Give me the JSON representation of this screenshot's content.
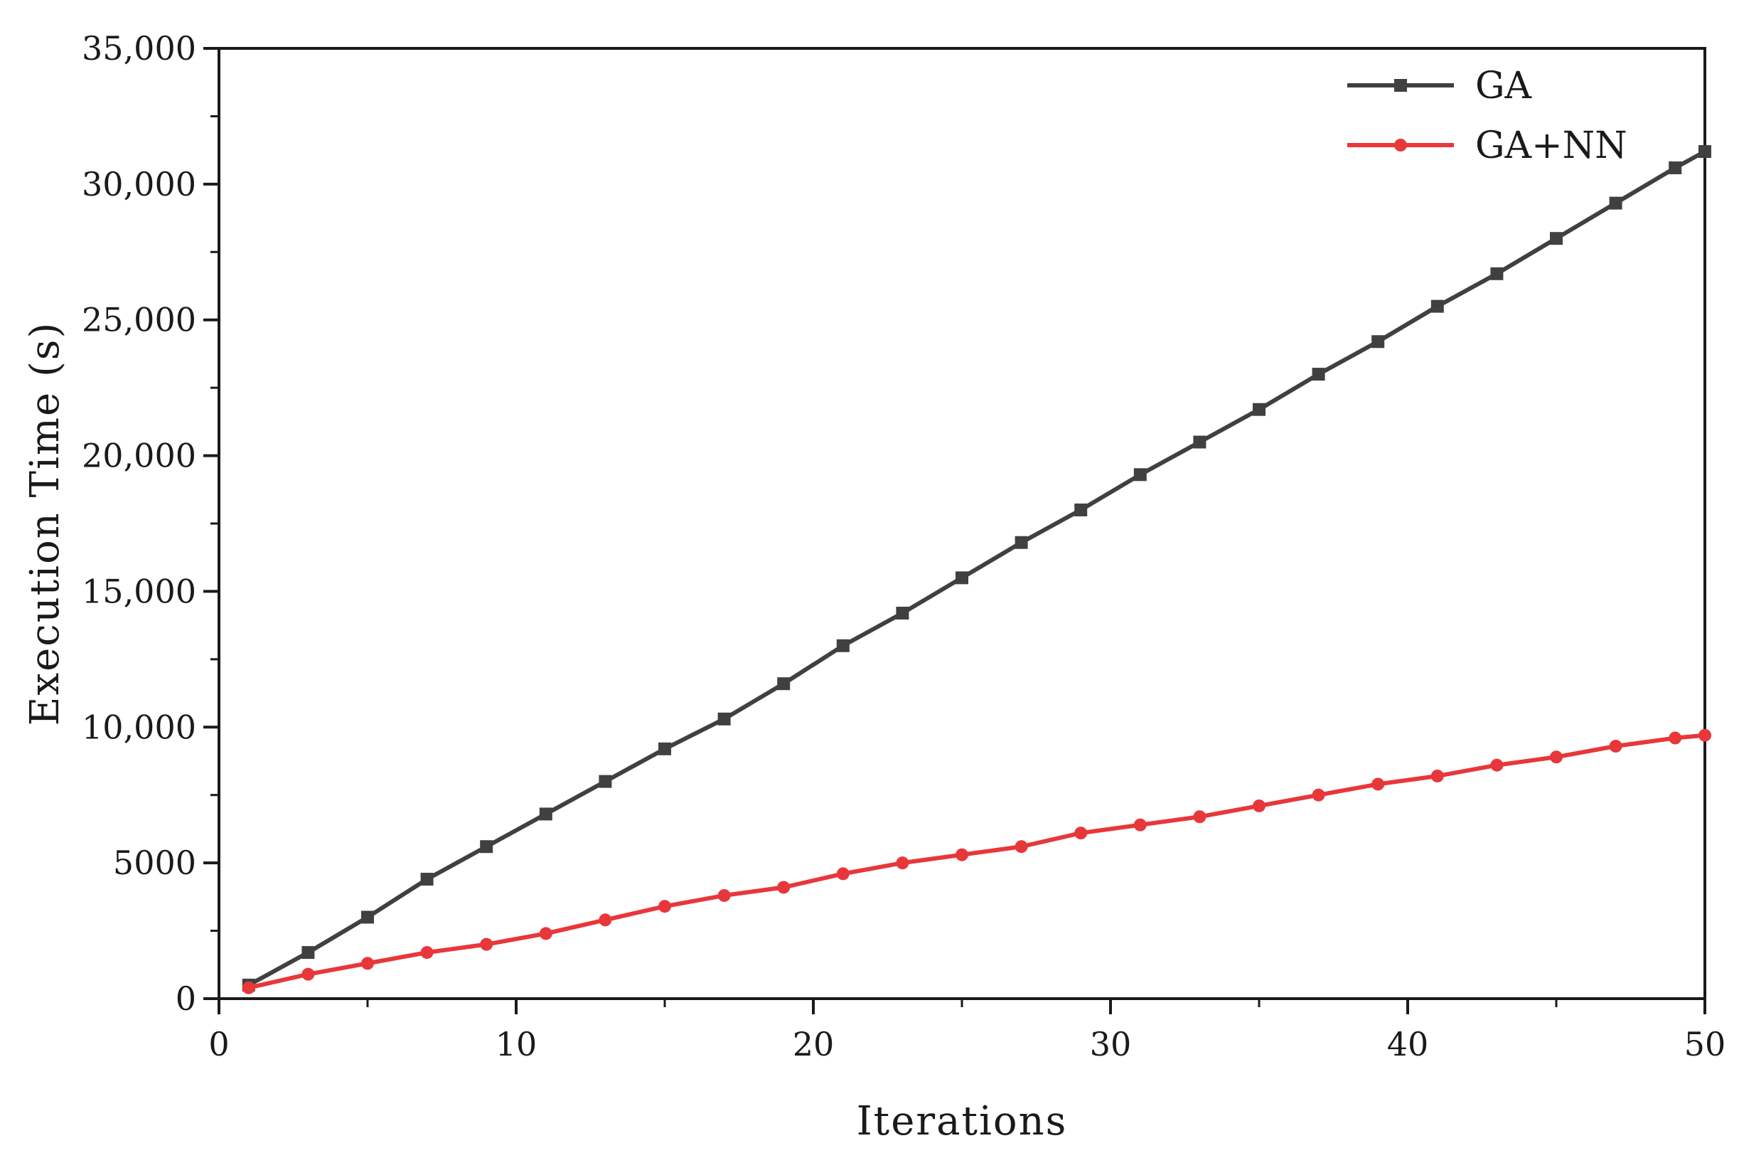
{
  "chart_data": {
    "type": "line",
    "xlabel": "Iterations",
    "ylabel": "Execution Time (s)",
    "xlim": [
      0,
      50
    ],
    "ylim": [
      0,
      35000
    ],
    "x_ticks": [
      0,
      10,
      20,
      30,
      40,
      50
    ],
    "x_tick_labels": [
      "0",
      "10",
      "20",
      "30",
      "40",
      "50"
    ],
    "y_ticks": [
      0,
      5000,
      10000,
      15000,
      20000,
      25000,
      30000,
      35000
    ],
    "y_tick_labels": [
      "0",
      "5000",
      "10,000",
      "15,000",
      "20,000",
      "25,000",
      "30,000",
      "35,000"
    ],
    "grid": false,
    "legend_position": "top-right",
    "series": [
      {
        "name": "GA",
        "color": "#404040",
        "marker": "square",
        "x": [
          1,
          3,
          5,
          7,
          9,
          11,
          13,
          15,
          17,
          19,
          21,
          23,
          25,
          27,
          29,
          31,
          33,
          35,
          37,
          39,
          41,
          43,
          45,
          47,
          49,
          50
        ],
        "y": [
          500,
          1700,
          3000,
          4400,
          5600,
          6800,
          8000,
          9200,
          10300,
          11600,
          13000,
          14200,
          15500,
          16800,
          18000,
          19300,
          20500,
          21700,
          23000,
          24200,
          25500,
          26700,
          28000,
          29300,
          30600,
          31200
        ]
      },
      {
        "name": "GA+NN",
        "color": "#e8373a",
        "marker": "circle",
        "x": [
          1,
          3,
          5,
          7,
          9,
          11,
          13,
          15,
          17,
          19,
          21,
          23,
          25,
          27,
          29,
          31,
          33,
          35,
          37,
          39,
          41,
          43,
          45,
          47,
          49,
          50
        ],
        "y": [
          400,
          900,
          1300,
          1700,
          2000,
          2400,
          2900,
          3400,
          3800,
          4100,
          4600,
          5000,
          5300,
          5600,
          6100,
          6400,
          6700,
          7100,
          7500,
          7900,
          8200,
          8600,
          8900,
          9300,
          9600,
          9700
        ]
      }
    ]
  }
}
